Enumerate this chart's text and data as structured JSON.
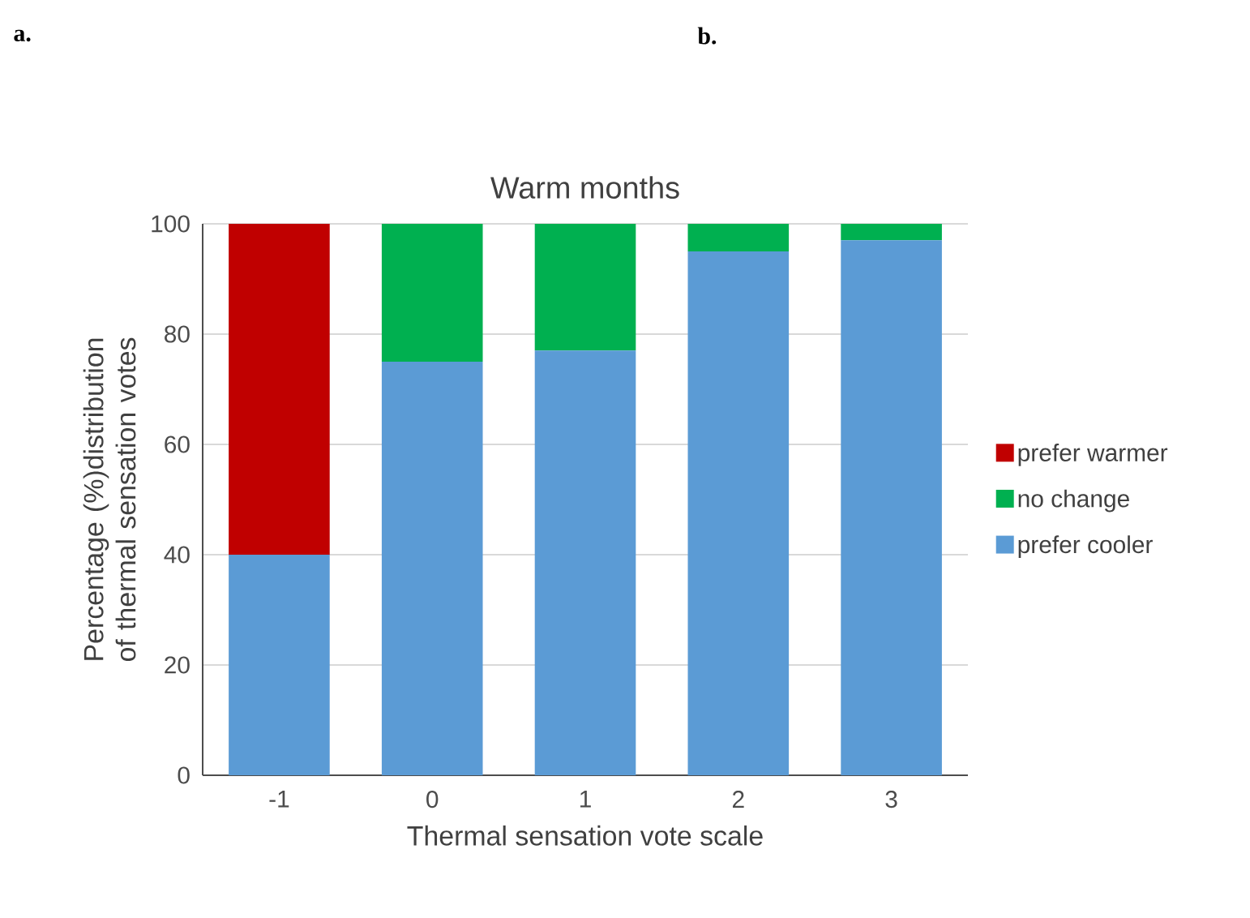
{
  "chart_data": {
    "type": "bar",
    "title": "Warm months",
    "xlabel": "Thermal sensation vote scale",
    "ylabel": "Percentage (%)distribution of thermal sensation votes",
    "categories": [
      "-1",
      "0",
      "1",
      "2",
      "3"
    ],
    "series": [
      {
        "name": "prefer cooler",
        "color": "#5b9bd5",
        "values": [
          40,
          75,
          77,
          95,
          97
        ]
      },
      {
        "name": "no change",
        "color": "#00b050",
        "values": [
          0,
          25,
          23,
          5,
          3
        ]
      },
      {
        "name": "prefer warmer",
        "color": "#c00000",
        "values": [
          60,
          0,
          0,
          0,
          0
        ]
      }
    ],
    "stacked": true,
    "ylim": [
      0,
      100
    ],
    "yticks": [
      0,
      20,
      40,
      60,
      80,
      100
    ],
    "grid": "y",
    "legend": "right",
    "annotations": [
      "a.",
      "b."
    ]
  }
}
